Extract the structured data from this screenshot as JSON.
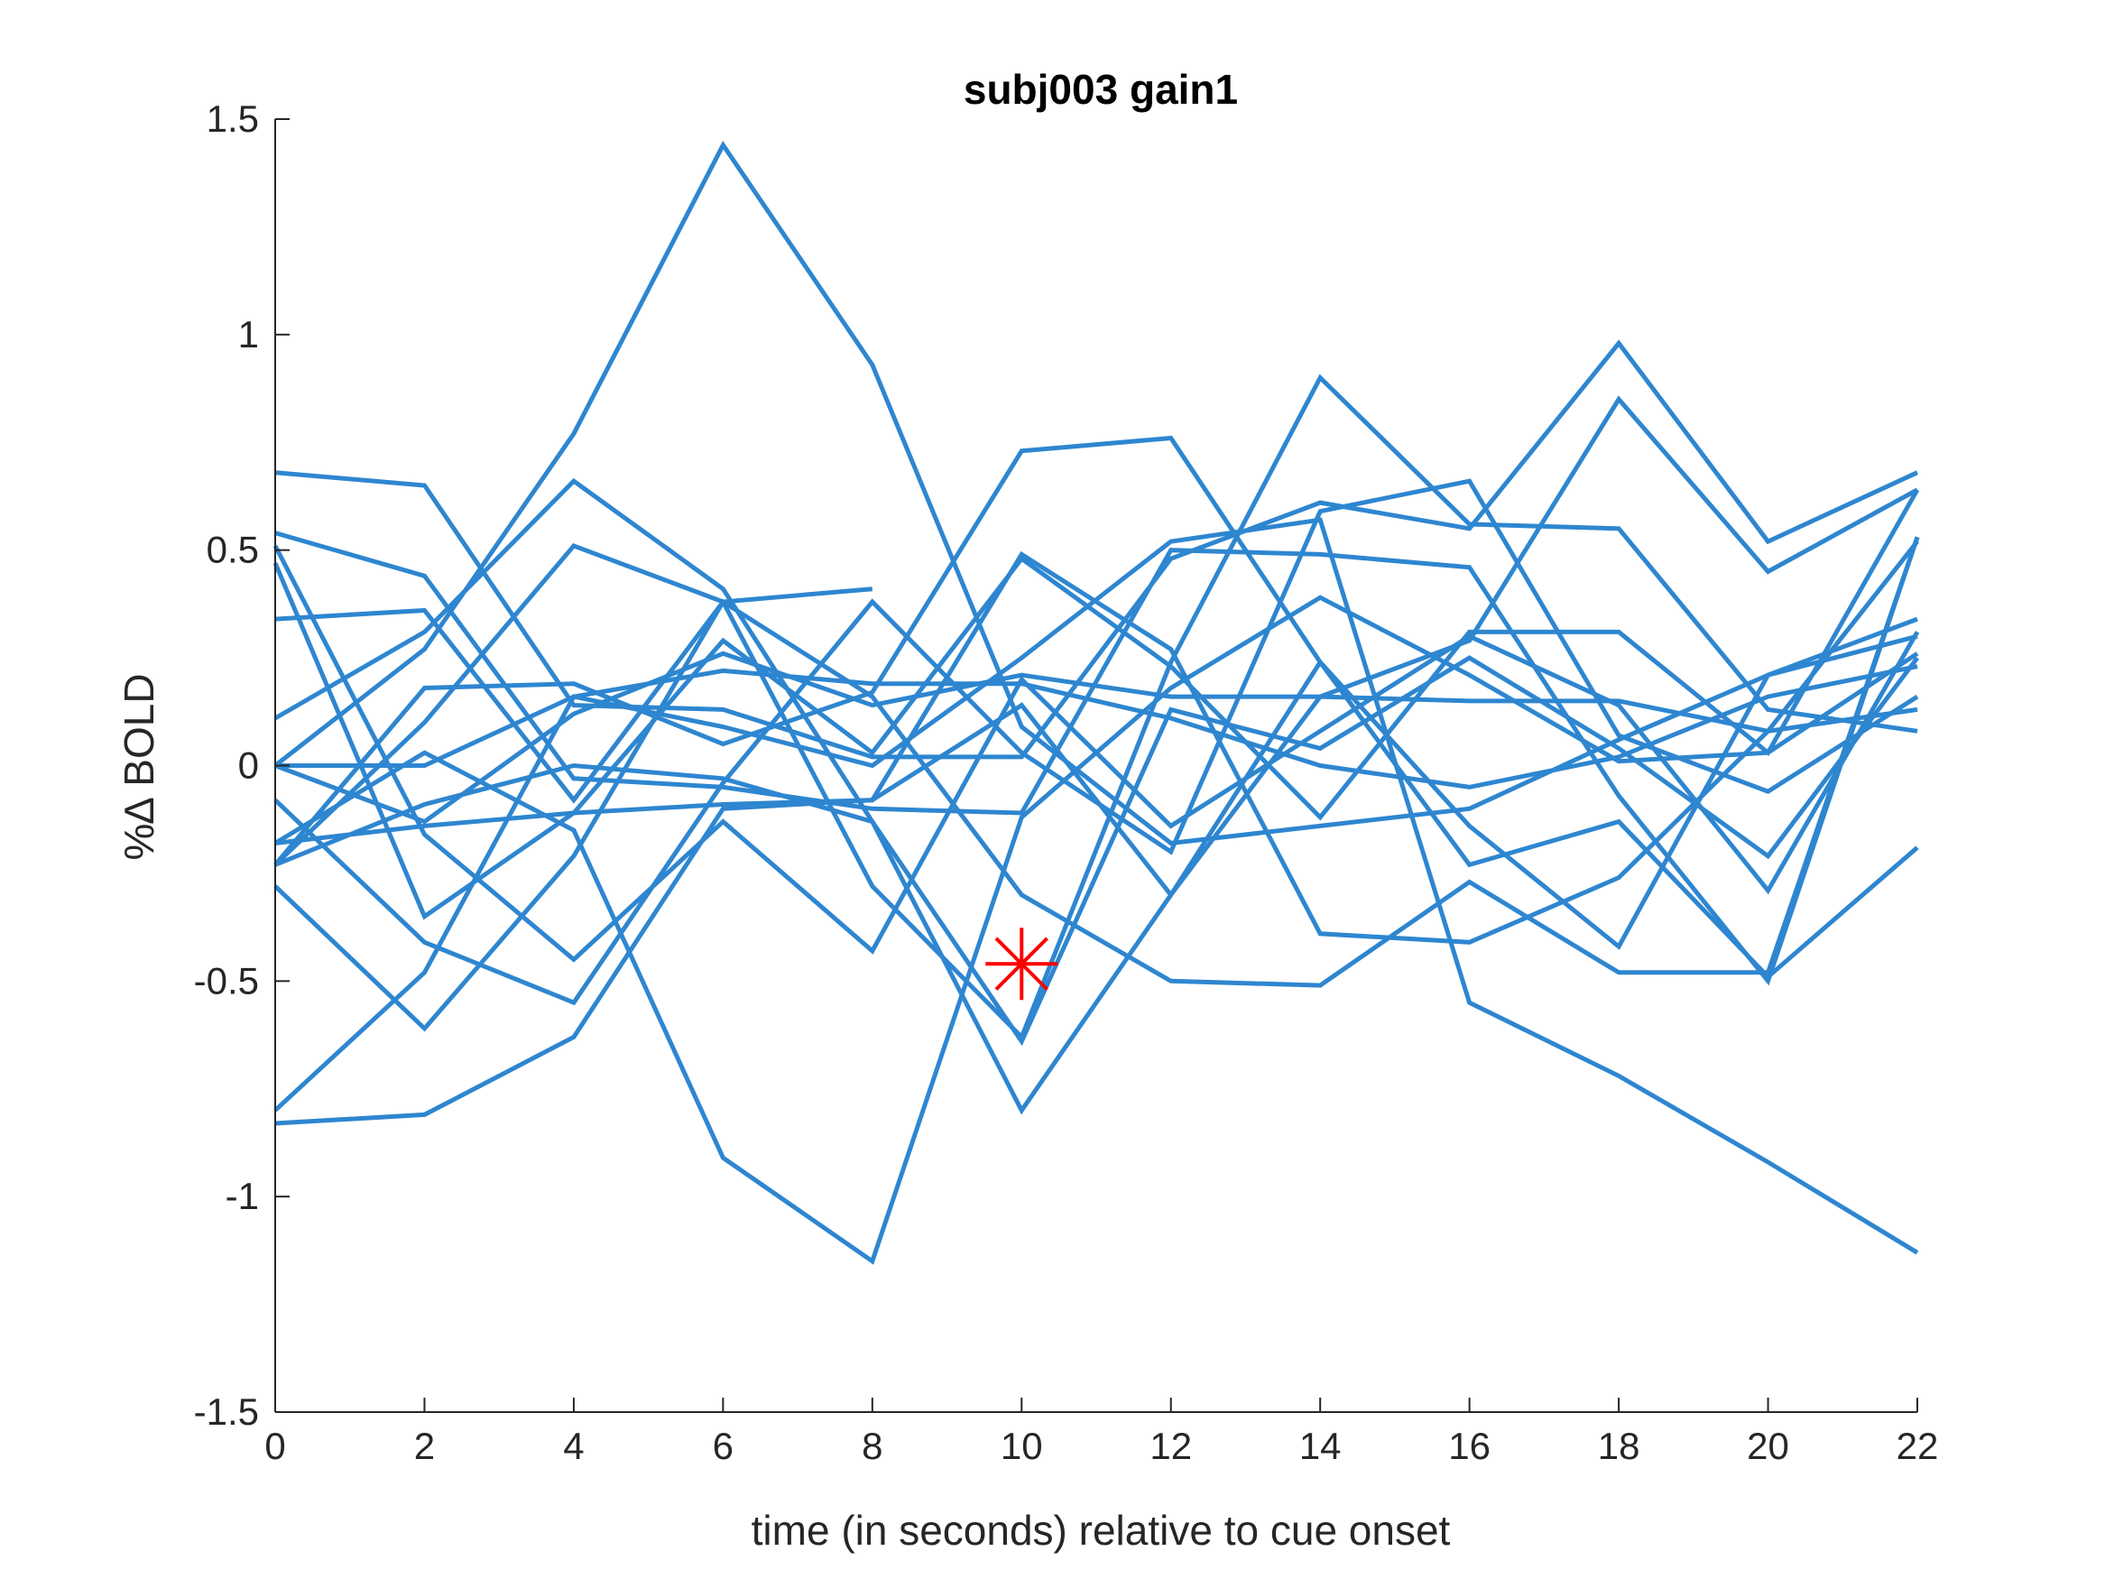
{
  "chart_data": {
    "type": "line",
    "title": "subj003 gain1",
    "xlabel": "time (in seconds) relative to cue onset",
    "ylabel": "%∆ BOLD",
    "xlim": [
      0,
      22
    ],
    "ylim": [
      -1.5,
      1.5
    ],
    "x_ticks": [
      "0",
      "2",
      "4",
      "6",
      "8",
      "10",
      "12",
      "14",
      "16",
      "18",
      "20",
      "22"
    ],
    "y_ticks": [
      "1.5",
      "1",
      "0.5",
      "0",
      "-0.5",
      "-1",
      "-1.5"
    ],
    "grid": false,
    "line_color": "#2e86d0",
    "marker_color": "#ff0000",
    "series": [
      {
        "x": [
          0,
          2,
          4,
          6,
          8
        ],
        "values": [
          0.34,
          0.36,
          -0.08,
          0.38,
          0.41
        ]
      },
      {
        "x": [
          0,
          2,
          4,
          6,
          8,
          10,
          12,
          14,
          16,
          18,
          20,
          22
        ],
        "values": [
          -0.83,
          -0.81,
          -0.63,
          -0.1,
          -0.08,
          0.49,
          0.27,
          -0.39,
          -0.41,
          -0.26,
          0.08,
          0.52
        ]
      },
      {
        "x": [
          0,
          2,
          4,
          6,
          8,
          10,
          12,
          14,
          16,
          18,
          20,
          22
        ],
        "values": [
          -0.23,
          0.18,
          0.19,
          0.05,
          0.17,
          0.73,
          0.76,
          0.24,
          -0.23,
          -0.13,
          -0.49,
          -0.19
        ]
      },
      {
        "x": [
          0,
          2,
          4,
          6,
          8,
          10,
          12,
          14,
          16,
          18,
          20,
          22
        ],
        "values": [
          0.68,
          0.65,
          0.14,
          0.13,
          0.02,
          0.02,
          0.48,
          0.61,
          0.55,
          0.98,
          0.52,
          0.68
        ]
      },
      {
        "x": [
          0,
          2,
          4,
          6,
          8,
          10,
          12,
          14,
          16,
          18,
          20,
          22
        ],
        "values": [
          0.54,
          0.44,
          -0.03,
          -0.05,
          -0.1,
          -0.11,
          0.5,
          0.49,
          0.46,
          -0.07,
          -0.5,
          0.53
        ]
      },
      {
        "x": [
          0,
          2,
          4,
          6,
          8,
          10,
          12,
          14,
          16,
          18,
          20,
          22
        ],
        "values": [
          0.47,
          -0.35,
          -0.11,
          0.29,
          0.03,
          0.48,
          0.23,
          -0.12,
          0.31,
          0.31,
          0.03,
          0.64
        ]
      },
      {
        "x": [
          0,
          2,
          4,
          6,
          8,
          10,
          12,
          14,
          16,
          18,
          20,
          22
        ],
        "values": [
          0.11,
          0.31,
          0.66,
          0.41,
          -0.13,
          -0.64,
          0.13,
          0.04,
          0.25,
          0.04,
          -0.21,
          0.25
        ]
      },
      {
        "x": [
          0,
          2,
          4,
          6,
          8,
          10,
          12,
          14,
          16,
          18,
          20,
          22
        ],
        "values": [
          -0.18,
          -0.14,
          -0.11,
          -0.09,
          -0.08,
          0.14,
          -0.3,
          0.24,
          -0.14,
          -0.42,
          0.21,
          0.34
        ]
      },
      {
        "x": [
          0,
          2,
          4,
          6,
          8,
          10,
          12,
          14,
          16,
          18,
          20,
          22
        ],
        "values": [
          -0.08,
          -0.41,
          -0.55,
          -0.04,
          0.38,
          0.03,
          -0.2,
          0.59,
          0.66,
          0.07,
          -0.06,
          0.16
        ]
      },
      {
        "x": [
          0,
          2,
          4,
          6,
          8,
          10,
          12,
          14,
          16,
          18,
          20,
          22
        ],
        "values": [
          0.0,
          0.27,
          0.77,
          1.44,
          0.93,
          0.09,
          -0.18,
          -0.14,
          -0.1,
          0.06,
          0.21,
          0.3
        ]
      },
      {
        "x": [
          0,
          2,
          4,
          6,
          8,
          10,
          12,
          14,
          16,
          18,
          20,
          22
        ],
        "values": [
          -0.8,
          -0.48,
          0.16,
          0.09,
          0.0,
          0.25,
          0.52,
          0.57,
          -0.55,
          -0.72,
          -0.92,
          -1.13
        ]
      },
      {
        "x": [
          0,
          2,
          4,
          6,
          8,
          10,
          12,
          14,
          16,
          18,
          20,
          22
        ],
        "values": [
          -0.28,
          -0.61,
          -0.21,
          0.38,
          0.16,
          -0.3,
          -0.5,
          -0.51,
          -0.27,
          -0.48,
          -0.48,
          0.53
        ]
      },
      {
        "x": [
          0,
          2,
          4,
          6,
          8,
          10,
          12,
          14,
          16,
          18,
          20,
          22
        ],
        "values": [
          -0.23,
          -0.09,
          0.0,
          -0.03,
          -0.13,
          -0.8,
          -0.3,
          0.16,
          0.29,
          0.85,
          0.45,
          0.64
        ]
      },
      {
        "x": [
          0,
          2,
          4,
          6,
          8,
          10,
          12,
          14,
          16,
          18,
          20,
          22
        ],
        "values": [
          -0.18,
          0.03,
          -0.15,
          -0.91,
          -1.15,
          -0.12,
          0.18,
          0.39,
          0.21,
          0.01,
          0.03,
          0.26
        ]
      },
      {
        "x": [
          0,
          2,
          4,
          6,
          8,
          10,
          12,
          14,
          16,
          18,
          20,
          22
        ],
        "values": [
          -0.23,
          0.1,
          0.51,
          0.38,
          -0.28,
          -0.63,
          0.24,
          0.9,
          0.56,
          0.55,
          0.13,
          0.08
        ]
      },
      {
        "x": [
          0,
          2,
          4,
          6,
          8,
          10,
          12,
          14,
          16,
          18,
          20,
          22
        ],
        "values": [
          0.51,
          -0.16,
          -0.45,
          -0.13,
          -0.43,
          0.2,
          -0.14,
          0.08,
          0.3,
          0.14,
          -0.29,
          0.31
        ]
      },
      {
        "x": [
          0,
          2,
          4,
          6,
          8,
          10,
          12,
          14,
          16,
          18,
          20,
          22
        ],
        "values": [
          0.0,
          0.0,
          0.16,
          0.22,
          0.19,
          0.19,
          0.11,
          0.0,
          -0.05,
          0.02,
          0.16,
          0.23
        ]
      },
      {
        "x": [
          0,
          2,
          4,
          6,
          8,
          10,
          12,
          14,
          16,
          18,
          20,
          22
        ],
        "values": [
          0.0,
          -0.13,
          0.12,
          0.26,
          0.14,
          0.21,
          0.16,
          0.16,
          0.15,
          0.15,
          0.08,
          0.13
        ]
      }
    ],
    "markers": [
      {
        "x": 10,
        "y": -0.46,
        "symbol": "asterisk"
      }
    ]
  }
}
